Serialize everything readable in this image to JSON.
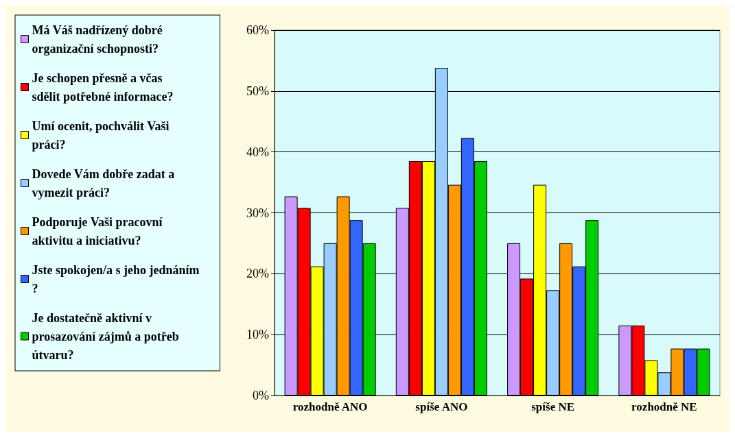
{
  "chart_data": {
    "type": "bar",
    "categories": [
      "rozhodně ANO",
      "spíše ANO",
      "spíše NE",
      "rozhodně NE"
    ],
    "series": [
      {
        "name": "Má Váš nadřízený dobré organizační schopnosti?",
        "color": "#cc99ff",
        "values": [
          32.7,
          30.8,
          25.0,
          11.5
        ]
      },
      {
        "name": "Je schopen přesně a včas sdělit potřebné informace?",
        "color": "#ff0000",
        "values": [
          30.8,
          38.5,
          19.2,
          11.5
        ]
      },
      {
        "name": "Umí ocenit, pochválit Vaši práci?",
        "color": "#ffff00",
        "values": [
          21.2,
          38.5,
          34.6,
          5.8
        ]
      },
      {
        "name": "Dovede Vám dobře zadat a vymezit práci?",
        "color": "#99ccff",
        "values": [
          25.0,
          53.8,
          17.3,
          3.8
        ]
      },
      {
        "name": "Podporuje Vaši pracovní aktivitu a iniciativu?",
        "color": "#ff9900",
        "values": [
          32.7,
          34.6,
          25.0,
          7.7
        ]
      },
      {
        "name": "Jste spokojen/a s jeho jednáním?",
        "color": "#3366ff",
        "values": [
          28.8,
          42.3,
          21.2,
          7.7
        ]
      },
      {
        "name": "Je dostatečně aktivní v prosazování zájmů a potřeb útvaru?",
        "color": "#00cc00",
        "values": [
          25.0,
          38.5,
          28.8,
          7.7
        ]
      }
    ],
    "ylim": [
      0,
      60
    ],
    "yticks": [
      {
        "value": 0,
        "label": "0%"
      },
      {
        "value": 10,
        "label": "10%"
      },
      {
        "value": 20,
        "label": "20%"
      },
      {
        "value": 30,
        "label": "30%"
      },
      {
        "value": 40,
        "label": "40%"
      },
      {
        "value": 50,
        "label": "50%"
      },
      {
        "value": 60,
        "label": "60%"
      }
    ],
    "grid": true,
    "legend": "left"
  }
}
